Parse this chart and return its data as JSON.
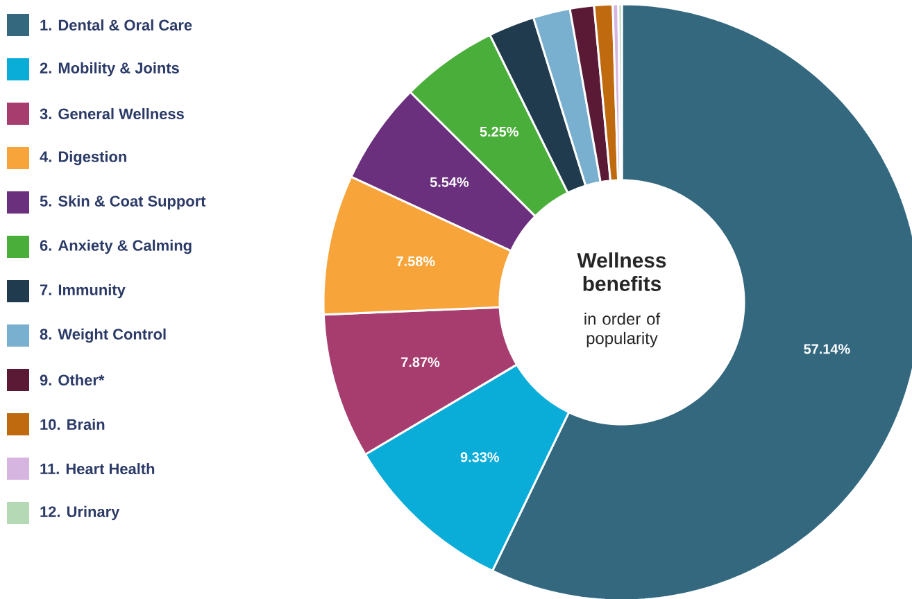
{
  "chart_data": {
    "type": "donut",
    "title": "Wellness benefits",
    "subtitle": "in order of popularity",
    "categories": [
      "1. Dental & Oral Care",
      "2. Mobility & Joints",
      "3. General Wellness",
      "4. Digestion",
      "5. Skin & Coat Support",
      "6. Anxiety & Calming",
      "7. Immunity",
      "8. Weight Control",
      "9. Other*",
      "10. Brain",
      "11. Heart Health",
      "12. Urinary"
    ],
    "values": [
      57.14,
      9.33,
      7.87,
      7.58,
      5.54,
      5.25,
      2.5,
      2.0,
      1.3,
      1.0,
      0.3,
      0.19
    ],
    "colors": [
      "#33687f",
      "#0aacd8",
      "#a73d6f",
      "#f7a53a",
      "#6a2f7d",
      "#4aae3a",
      "#1f3b4d",
      "#7ab0cf",
      "#5a1a36",
      "#c06a10",
      "#d6b5e0",
      "#b5d8b5"
    ],
    "value_labels": [
      "57.14%",
      "9.33%",
      "7.87%",
      "7.58%",
      "5.54%",
      "5.25%",
      null,
      null,
      null,
      null,
      null,
      null
    ],
    "legend": "left"
  }
}
